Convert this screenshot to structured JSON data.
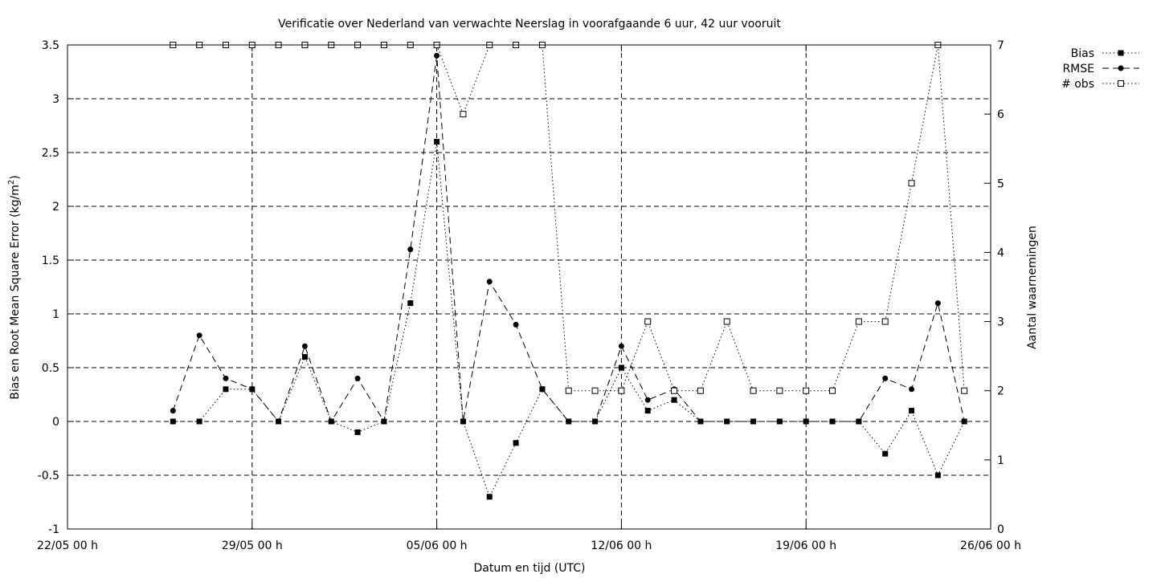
{
  "chart_data": {
    "type": "line",
    "title": "Verificatie over Nederland van verwachte Neerslag in voorafgaande 6 uur, 42 uur vooruit",
    "xlabel": "Datum en tijd (UTC)",
    "ylabel": "Bias en Root Mean Square Error (kg/m",
    "ylabel_sup": "2",
    "ylabel_end": ")",
    "y2label": "Aantal waarnemingen",
    "xlim": [
      "2025-05-22",
      "2025-06-26"
    ],
    "ylim": [
      -1,
      3.5
    ],
    "y2lim": [
      0,
      7
    ],
    "x_ticks": [
      {
        "date": "2025-05-22",
        "label": "22/05 00 h"
      },
      {
        "date": "2025-05-29",
        "label": "29/05 00 h"
      },
      {
        "date": "2025-06-05",
        "label": "05/06 00 h"
      },
      {
        "date": "2025-06-12",
        "label": "12/06 00 h"
      },
      {
        "date": "2025-06-19",
        "label": "19/06 00 h"
      },
      {
        "date": "2025-06-26",
        "label": "26/06 00 h"
      }
    ],
    "y_ticks": [
      "-1",
      "-0.5",
      "0",
      "0.5",
      "1",
      "1.5",
      "2",
      "2.5",
      "3",
      "3.5"
    ],
    "y2_ticks": [
      "0",
      "1",
      "2",
      "3",
      "4",
      "5",
      "6",
      "7"
    ],
    "grid": true,
    "legend_position": "top-right outside",
    "x": [
      "2025-05-26",
      "2025-05-27",
      "2025-05-28",
      "2025-05-29",
      "2025-05-30",
      "2025-05-31",
      "2025-06-01",
      "2025-06-02",
      "2025-06-03",
      "2025-06-04",
      "2025-06-05",
      "2025-06-06",
      "2025-06-07",
      "2025-06-08",
      "2025-06-09",
      "2025-06-10",
      "2025-06-11",
      "2025-06-12",
      "2025-06-13",
      "2025-06-14",
      "2025-06-15",
      "2025-06-16",
      "2025-06-17",
      "2025-06-18",
      "2025-06-19",
      "2025-06-20",
      "2025-06-21",
      "2025-06-22",
      "2025-06-23",
      "2025-06-24",
      "2025-06-25"
    ],
    "series": [
      {
        "name": "Bias",
        "axis": "y1",
        "marker": "filled-square",
        "line": "dotted",
        "values": [
          0,
          0,
          0.3,
          0.3,
          0,
          0.6,
          0,
          -0.1,
          0,
          1.1,
          2.6,
          0,
          -0.7,
          -0.2,
          0.3,
          0,
          0,
          0.5,
          0.1,
          0.2,
          0,
          0,
          0,
          0,
          0,
          0,
          0,
          -0.3,
          0.1,
          -0.5,
          0
        ]
      },
      {
        "name": "RMSE",
        "axis": "y1",
        "marker": "filled-circle",
        "line": "dashed",
        "values": [
          0.1,
          0.8,
          0.4,
          0.3,
          0,
          0.7,
          0,
          0.4,
          0,
          1.6,
          3.4,
          0,
          1.3,
          0.9,
          0.3,
          0,
          0,
          0.7,
          0.2,
          0.3,
          0,
          0,
          0,
          0,
          0,
          0,
          0,
          0.4,
          0.3,
          1.1,
          0
        ]
      },
      {
        "name": "# obs",
        "axis": "y2",
        "marker": "open-square",
        "line": "dotted",
        "values": [
          7,
          7,
          7,
          7,
          7,
          7,
          7,
          7,
          7,
          7,
          7,
          6,
          7,
          7,
          7,
          2,
          2,
          2,
          3,
          2,
          2,
          3,
          2,
          2,
          2,
          2,
          3,
          3,
          5,
          7,
          2
        ]
      }
    ]
  }
}
